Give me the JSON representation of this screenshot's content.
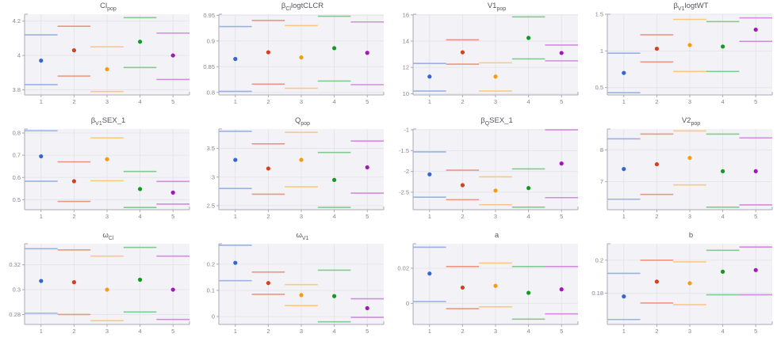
{
  "page": {
    "background": "#ffffff",
    "plot_bg": "#f3f3f7",
    "grid_color": "#e4e4ec",
    "axis_color": "#a9a9b4",
    "tick_label_color": "#85858f",
    "title_color": "#55555e"
  },
  "palette": {
    "runs": [
      "run-1",
      "run-2",
      "run-3",
      "run-4",
      "run-5"
    ],
    "point_colors": [
      "#3565cf",
      "#d5401f",
      "#f59d0e",
      "#129b21",
      "#a416bc"
    ],
    "line_colors": [
      "#9ab1e4",
      "#ec9681",
      "#fac97f",
      "#83ca90",
      "#d28cdd"
    ]
  },
  "axes": {
    "xlim": [
      0.5,
      5.5
    ],
    "x_ticks": [
      1,
      2,
      3,
      4,
      5
    ],
    "x_tick_labels": [
      "1",
      "2",
      "3",
      "4",
      "5"
    ]
  },
  "chart_data": [
    {
      "id": "Cl_pop",
      "type": "scatter",
      "title": [
        {
          "text": "Cl"
        },
        {
          "text": "pop",
          "sub": true
        }
      ],
      "ylim": [
        3.77,
        4.24
      ],
      "yticks": [
        3.8,
        4.0,
        4.2
      ],
      "ytick_labels": [
        "3.8",
        "4",
        "4.2"
      ],
      "x": [
        1,
        2,
        3,
        4,
        5
      ],
      "estimate": [
        3.97,
        4.03,
        3.92,
        4.08,
        4.0
      ],
      "ci_lower": [
        3.83,
        3.88,
        3.79,
        3.93,
        3.86
      ],
      "ci_upper": [
        4.12,
        4.17,
        4.05,
        4.22,
        4.13
      ]
    },
    {
      "id": "beta_Cl_logtCLCR",
      "type": "scatter",
      "title": [
        {
          "text": "β"
        },
        {
          "text": "Cl",
          "sub": true
        },
        {
          "text": "logtCLCR"
        }
      ],
      "ylim": [
        0.795,
        0.952
      ],
      "yticks": [
        0.8,
        0.85,
        0.9,
        0.95
      ],
      "ytick_labels": [
        "0.8",
        "0.85",
        "0.9",
        "0.95"
      ],
      "x": [
        1,
        2,
        3,
        4,
        5
      ],
      "estimate": [
        0.865,
        0.878,
        0.868,
        0.886,
        0.877
      ],
      "ci_lower": [
        0.802,
        0.816,
        0.808,
        0.822,
        0.815
      ],
      "ci_upper": [
        0.928,
        0.94,
        0.93,
        0.948,
        0.937
      ]
    },
    {
      "id": "V1_pop",
      "type": "scatter",
      "title": [
        {
          "text": "V1"
        },
        {
          "text": "pop",
          "sub": true
        }
      ],
      "ylim": [
        9.9,
        16.05
      ],
      "yticks": [
        10,
        12,
        14,
        16
      ],
      "ytick_labels": [
        "10",
        "12",
        "14",
        "16"
      ],
      "x": [
        1,
        2,
        3,
        4,
        5
      ],
      "estimate": [
        11.3,
        13.15,
        11.3,
        14.25,
        13.1
      ],
      "ci_lower": [
        10.2,
        12.25,
        10.2,
        12.65,
        12.5
      ],
      "ci_upper": [
        12.3,
        14.1,
        12.35,
        15.85,
        13.7
      ]
    },
    {
      "id": "beta_V1_logtWT",
      "type": "scatter",
      "title": [
        {
          "text": "β"
        },
        {
          "text": "V1",
          "sub": true
        },
        {
          "text": "logtWT"
        }
      ],
      "ylim": [
        0.4,
        1.5
      ],
      "yticks": [
        0.5,
        1.0,
        1.5
      ],
      "ytick_labels": [
        "0.5",
        "1",
        "1.5"
      ],
      "x": [
        1,
        2,
        3,
        4,
        5
      ],
      "estimate": [
        0.7,
        1.03,
        1.08,
        1.06,
        1.29
      ],
      "ci_lower": [
        0.43,
        0.85,
        0.72,
        0.72,
        1.13
      ],
      "ci_upper": [
        0.97,
        1.22,
        1.43,
        1.4,
        1.45
      ]
    },
    {
      "id": "beta_V1_SEX_1",
      "type": "scatter",
      "title": [
        {
          "text": "β"
        },
        {
          "text": "V1",
          "sub": true
        },
        {
          "text": "SEX_1"
        }
      ],
      "ylim": [
        0.455,
        0.818
      ],
      "yticks": [
        0.5,
        0.6,
        0.7,
        0.8
      ],
      "ytick_labels": [
        "0.5",
        "0.6",
        "0.7",
        "0.8"
      ],
      "x": [
        1,
        2,
        3,
        4,
        5
      ],
      "estimate": [
        0.695,
        0.583,
        0.682,
        0.548,
        0.532
      ],
      "ci_lower": [
        0.583,
        0.492,
        0.585,
        0.465,
        0.48
      ],
      "ci_upper": [
        0.81,
        0.67,
        0.778,
        0.627,
        0.582
      ]
    },
    {
      "id": "Q_pop",
      "type": "scatter",
      "title": [
        {
          "text": "Q"
        },
        {
          "text": "pop",
          "sub": true
        }
      ],
      "ylim": [
        2.43,
        3.84
      ],
      "yticks": [
        2.5,
        3.0,
        3.5
      ],
      "ytick_labels": [
        "2.5",
        "3",
        "3.5"
      ],
      "x": [
        1,
        2,
        3,
        4,
        5
      ],
      "estimate": [
        3.3,
        3.15,
        3.3,
        2.95,
        3.17
      ],
      "ci_lower": [
        2.8,
        2.7,
        2.83,
        2.47,
        2.72
      ],
      "ci_upper": [
        3.8,
        3.58,
        3.78,
        3.43,
        3.63
      ]
    },
    {
      "id": "beta_Q_SEX_1",
      "type": "scatter",
      "title": [
        {
          "text": "β"
        },
        {
          "text": "Q",
          "sub": true
        },
        {
          "text": "SEX_1"
        }
      ],
      "ylim": [
        -2.92,
        -0.98
      ],
      "yticks": [
        -1,
        -1.5,
        -2,
        -2.5
      ],
      "ytick_labels": [
        "-1",
        "-1.5",
        "-2",
        "-2.5"
      ],
      "x": [
        1,
        2,
        3,
        4,
        5
      ],
      "estimate": [
        -2.07,
        -2.33,
        -2.46,
        -2.4,
        -1.81
      ],
      "ci_lower": [
        -2.62,
        -2.68,
        -2.8,
        -2.86,
        -2.63
      ],
      "ci_upper": [
        -1.53,
        -1.97,
        -2.13,
        -1.94,
        -1.0
      ]
    },
    {
      "id": "V2_pop",
      "type": "scatter",
      "title": [
        {
          "text": "V2"
        },
        {
          "text": "pop",
          "sub": true
        }
      ],
      "ylim": [
        6.12,
        8.66
      ],
      "yticks": [
        7,
        8
      ],
      "ytick_labels": [
        "7",
        "8"
      ],
      "x": [
        1,
        2,
        3,
        4,
        5
      ],
      "estimate": [
        7.4,
        7.55,
        7.75,
        7.33,
        7.33
      ],
      "ci_lower": [
        6.45,
        6.6,
        6.9,
        6.2,
        6.27
      ],
      "ci_upper": [
        8.35,
        8.5,
        8.6,
        8.5,
        8.38
      ]
    },
    {
      "id": "omega_Cl",
      "type": "scatter",
      "title": [
        {
          "text": "ω"
        },
        {
          "text": "Cl",
          "sub": true
        }
      ],
      "ylim": [
        0.272,
        0.337
      ],
      "yticks": [
        0.28,
        0.3,
        0.32
      ],
      "ytick_labels": [
        "0.28",
        "0.3",
        "0.32"
      ],
      "x": [
        1,
        2,
        3,
        4,
        5
      ],
      "estimate": [
        0.307,
        0.306,
        0.3,
        0.308,
        0.3
      ],
      "ci_lower": [
        0.281,
        0.28,
        0.275,
        0.282,
        0.276
      ],
      "ci_upper": [
        0.333,
        0.332,
        0.327,
        0.334,
        0.327
      ]
    },
    {
      "id": "omega_V1",
      "type": "scatter",
      "title": [
        {
          "text": "ω"
        },
        {
          "text": "V1",
          "sub": true
        }
      ],
      "ylim": [
        -0.03,
        0.278
      ],
      "yticks": [
        0,
        0.1,
        0.2
      ],
      "ytick_labels": [
        "0",
        "0.1",
        "0.2"
      ],
      "x": [
        1,
        2,
        3,
        4,
        5
      ],
      "estimate": [
        0.205,
        0.128,
        0.082,
        0.078,
        0.032
      ],
      "ci_lower": [
        0.137,
        0.085,
        0.042,
        -0.02,
        -0.003
      ],
      "ci_upper": [
        0.272,
        0.17,
        0.122,
        0.177,
        0.068
      ]
    },
    {
      "id": "a",
      "type": "scatter",
      "title": [
        {
          "text": "a"
        }
      ],
      "ylim": [
        -0.012,
        0.034
      ],
      "yticks": [
        0,
        0.02
      ],
      "ytick_labels": [
        "0",
        "0.02"
      ],
      "x": [
        1,
        2,
        3,
        4,
        5
      ],
      "estimate": [
        0.017,
        0.009,
        0.01,
        0.006,
        0.008
      ],
      "ci_lower": [
        0.001,
        -0.003,
        -0.002,
        -0.009,
        -0.006
      ],
      "ci_upper": [
        0.032,
        0.021,
        0.023,
        0.021,
        0.021
      ]
    },
    {
      "id": "b",
      "type": "scatter",
      "title": [
        {
          "text": "b"
        }
      ],
      "ylim": [
        0.161,
        0.21
      ],
      "yticks": [
        0.18,
        0.2
      ],
      "ytick_labels": [
        "0.18",
        "0.2"
      ],
      "x": [
        1,
        2,
        3,
        4,
        5
      ],
      "estimate": [
        0.178,
        0.187,
        0.186,
        0.193,
        0.194
      ],
      "ci_lower": [
        0.164,
        0.174,
        0.173,
        0.179,
        0.179
      ],
      "ci_upper": [
        0.192,
        0.2,
        0.199,
        0.206,
        0.208
      ]
    }
  ]
}
